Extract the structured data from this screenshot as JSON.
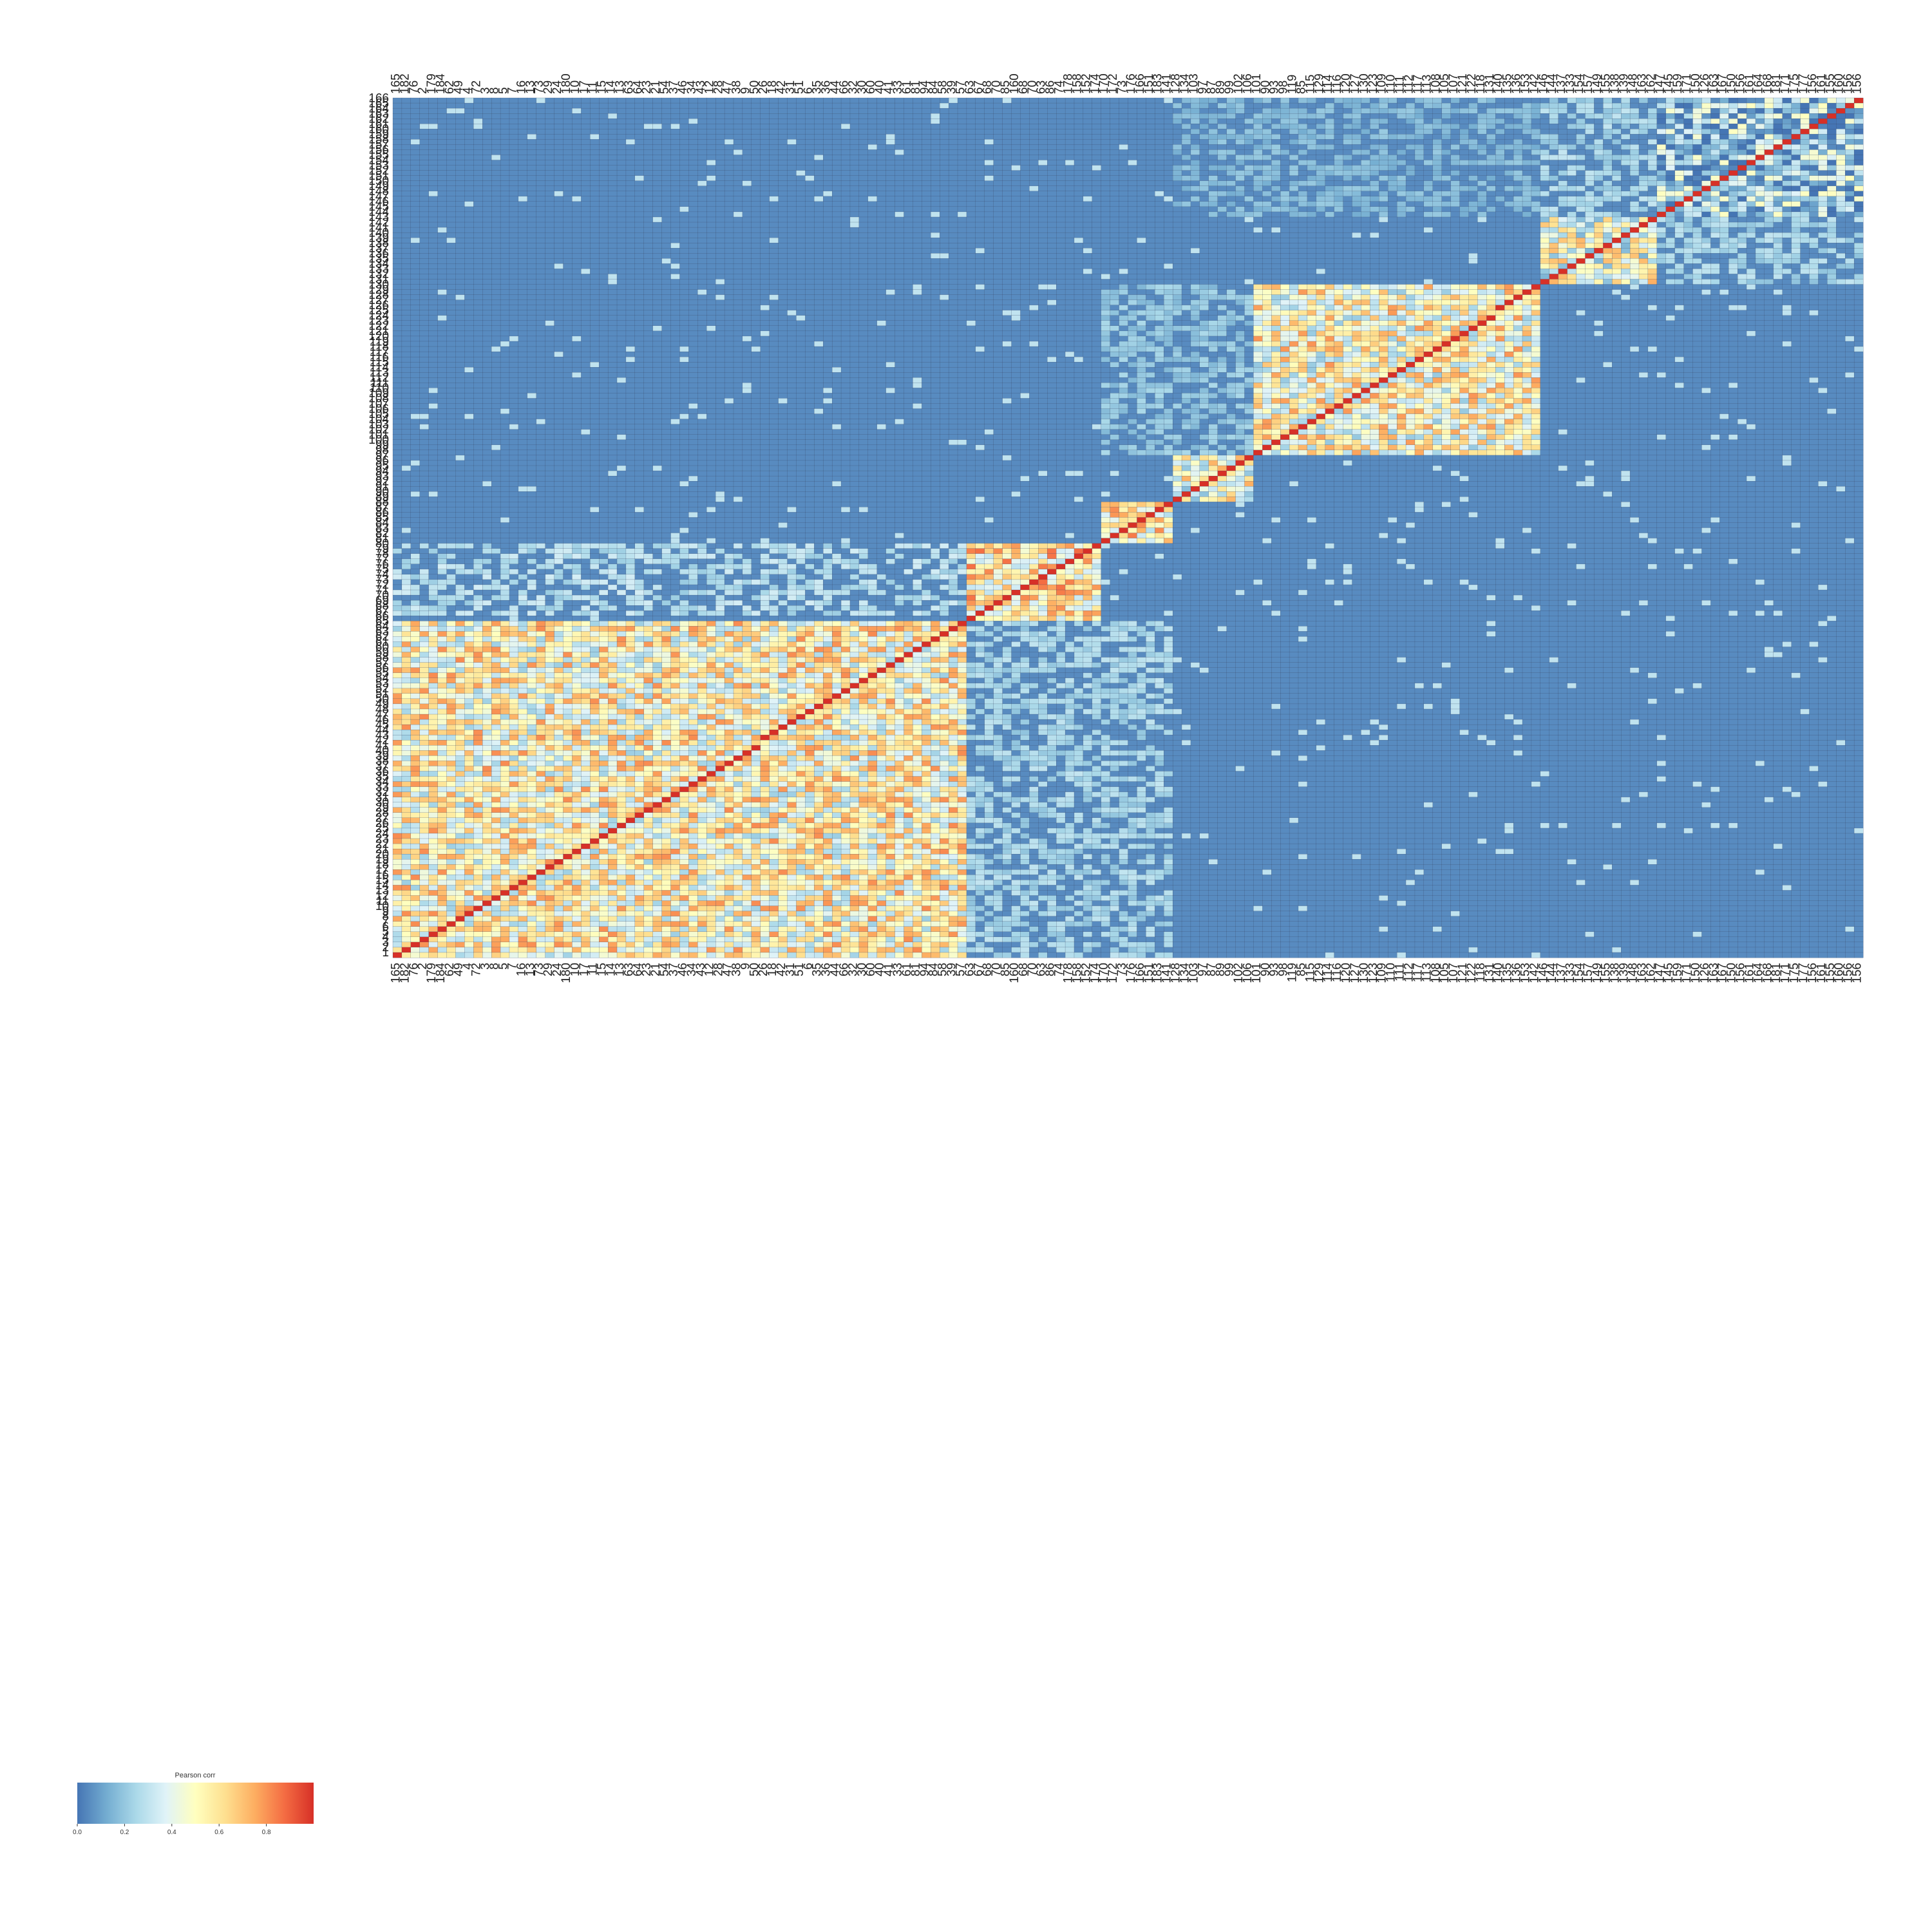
{
  "chart_data": {
    "type": "heatmap",
    "title": "",
    "xlabel": "",
    "ylabel": "",
    "colorbar": {
      "label": "Pearson corr",
      "min": 0.0,
      "max": 1.0,
      "ticks": [
        "0.0",
        "0.2",
        "0.4",
        "0.6",
        "0.8"
      ],
      "tick_values": [
        0.0,
        0.2,
        0.4,
        0.6,
        0.8
      ],
      "colormap": "RdYlBu_r",
      "colors": [
        "#4575b4",
        "#74add1",
        "#abd9e9",
        "#e0f3f8",
        "#ffffbf",
        "#fee090",
        "#fdae61",
        "#f46d43",
        "#d73027"
      ],
      "placement": "bottom-left"
    },
    "row_labels": [
      "166",
      "165",
      "164",
      "163",
      "162",
      "161",
      "160",
      "159",
      "158",
      "157",
      "156",
      "155",
      "154",
      "153",
      "152",
      "151",
      "150",
      "149",
      "148",
      "147",
      "146",
      "145",
      "144",
      "143",
      "142",
      "141",
      "140",
      "139",
      "138",
      "137",
      "136",
      "135",
      "134",
      "133",
      "132",
      "131",
      "130",
      "129",
      "128",
      "127",
      "126",
      "125",
      "124",
      "123",
      "122",
      "121",
      "120",
      "119",
      "118",
      "117",
      "116",
      "115",
      "114",
      "113",
      "112",
      "111",
      "110",
      "109",
      "108",
      "107",
      "106",
      "105",
      "104",
      "103",
      "102",
      "101",
      "100",
      "99",
      "98",
      "97",
      "96",
      "95",
      "94",
      "93",
      "92",
      "91",
      "90",
      "89",
      "88",
      "87",
      "86",
      "85",
      "84",
      "83",
      "82",
      "81",
      "80",
      "79",
      "78",
      "77",
      "76",
      "75",
      "74",
      "73",
      "72",
      "71",
      "70",
      "69",
      "68",
      "67",
      "66",
      "65",
      "64",
      "63",
      "62",
      "61",
      "60",
      "59",
      "58",
      "57",
      "56",
      "55",
      "54",
      "53",
      "52",
      "51",
      "50",
      "49",
      "48",
      "47",
      "46",
      "45",
      "44",
      "43",
      "42",
      "41",
      "40",
      "39",
      "38",
      "37",
      "36",
      "35",
      "34",
      "33",
      "32",
      "31",
      "30",
      "29",
      "28",
      "27",
      "26",
      "25",
      "24",
      "23",
      "22",
      "21",
      "20",
      "19",
      "18",
      "17",
      "16",
      "15",
      "14",
      "13",
      "12",
      "11",
      "10",
      "9",
      "8",
      "7",
      "6",
      "5",
      "4",
      "3",
      "2",
      "1"
    ],
    "col_labels": [
      "165",
      "182",
      "76",
      "2",
      "179",
      "184",
      "62",
      "49",
      "4",
      "72",
      "3",
      "8",
      "5",
      "7",
      "16",
      "13",
      "73",
      "29",
      "24",
      "180",
      "10",
      "17",
      "11",
      "15",
      "14",
      "13",
      "63",
      "64",
      "23",
      "21",
      "54",
      "37",
      "46",
      "34",
      "43",
      "12",
      "28",
      "47",
      "38",
      "9",
      "50",
      "26",
      "18",
      "42",
      "31",
      "51",
      "6",
      "35",
      "36",
      "44",
      "66",
      "32",
      "30",
      "60",
      "40",
      "41",
      "33",
      "61",
      "81",
      "94",
      "84",
      "58",
      "39",
      "57",
      "63",
      "67",
      "68",
      "70",
      "85",
      "160",
      "68",
      "70",
      "63",
      "86",
      "74",
      "178",
      "158",
      "152",
      "174",
      "170",
      "172",
      "73",
      "176",
      "166",
      "151",
      "183",
      "141",
      "128",
      "134",
      "103",
      "97",
      "87",
      "89",
      "99",
      "102",
      "106",
      "101",
      "90",
      "93",
      "98",
      "119",
      "85",
      "115",
      "129",
      "114",
      "116",
      "120",
      "127",
      "130",
      "123",
      "109",
      "110",
      "111",
      "112",
      "117",
      "113",
      "108",
      "105",
      "107",
      "121",
      "122",
      "118",
      "131",
      "140",
      "135",
      "136",
      "153",
      "142",
      "146",
      "144",
      "137",
      "133",
      "154",
      "157",
      "149",
      "155",
      "138",
      "139",
      "148",
      "163",
      "162",
      "147",
      "145",
      "159",
      "171",
      "150",
      "126",
      "163",
      "167",
      "150",
      "156",
      "161",
      "164",
      "168",
      "181",
      "171",
      "175",
      "177",
      "156",
      "161",
      "155",
      "160",
      "156",
      "156"
    ],
    "clusters": [
      {
        "from": 1,
        "to": 65,
        "strength": 0.52
      },
      {
        "from": 66,
        "to": 80,
        "strength": 0.58
      },
      {
        "from": 81,
        "to": 88,
        "strength": 0.55
      },
      {
        "from": 89,
        "to": 97,
        "strength": 0.45
      },
      {
        "from": 98,
        "to": 130,
        "strength": 0.5
      },
      {
        "from": 131,
        "to": 143,
        "strength": 0.45
      },
      {
        "from": 144,
        "to": 166,
        "strength": 0.2
      }
    ],
    "off_block_pairs": [
      {
        "rows": [
          67,
          80
        ],
        "cols": [
          1,
          65
        ],
        "strength": 0.25
      },
      {
        "rows": [
          1,
          65
        ],
        "cols": [
          66,
          88
        ],
        "strength": 0.22
      },
      {
        "rows": [
          98,
          130
        ],
        "cols": [
          81,
          97
        ],
        "strength": 0.18
      },
      {
        "rows": [
          144,
          166
        ],
        "cols": [
          89,
          130
        ],
        "strength": 0.15
      },
      {
        "rows": [
          131,
          166
        ],
        "cols": [
          131,
          166
        ],
        "strength": 0.22
      }
    ],
    "diagonal_value": 1.0,
    "background_value": 0.05,
    "grid": true
  }
}
